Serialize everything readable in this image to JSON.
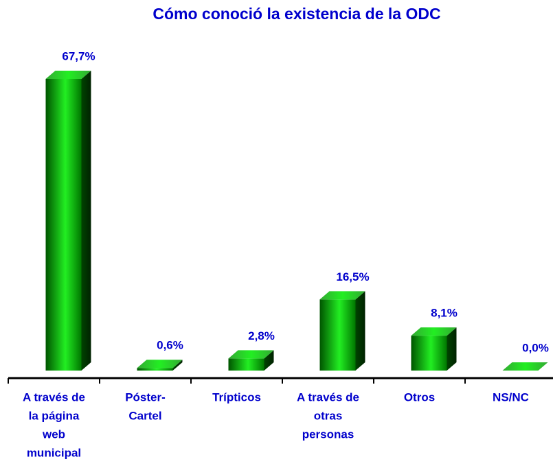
{
  "chart_data": {
    "type": "bar3d",
    "title": "Cómo conoció la existencia de la ODC",
    "categories": [
      [
        "A través de",
        "la página",
        "web",
        "municipal"
      ],
      [
        "Póster-",
        "Cartel"
      ],
      [
        "Trípticos"
      ],
      [
        "A través de",
        "otras",
        "personas"
      ],
      [
        "Otros"
      ],
      [
        "NS/NC"
      ]
    ],
    "values": [
      67.7,
      0.6,
      2.8,
      16.5,
      8.1,
      0.0
    ],
    "value_labels": [
      "67,7%",
      "0,6%",
      "2,8%",
      "16,5%",
      "8,1%",
      "0,0%"
    ],
    "color": "#22ee22"
  }
}
